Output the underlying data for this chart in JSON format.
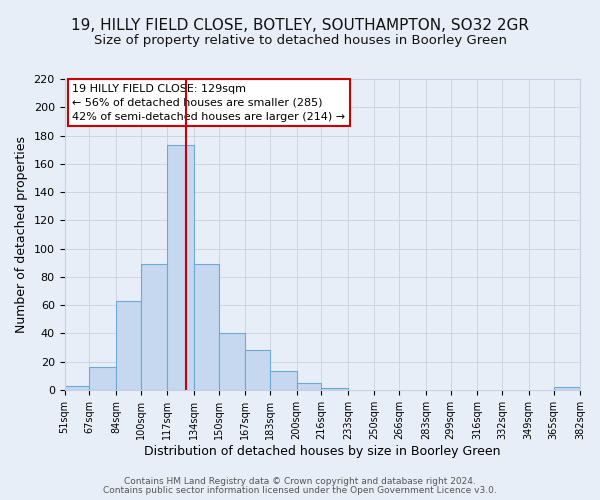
{
  "title": "19, HILLY FIELD CLOSE, BOTLEY, SOUTHAMPTON, SO32 2GR",
  "subtitle": "Size of property relative to detached houses in Boorley Green",
  "xlabel": "Distribution of detached houses by size in Boorley Green",
  "ylabel": "Number of detached properties",
  "bin_edges": [
    51,
    67,
    84,
    100,
    117,
    134,
    150,
    167,
    183,
    200,
    216,
    233,
    250,
    266,
    283,
    299,
    316,
    332,
    349,
    365,
    382
  ],
  "bin_heights": [
    3,
    16,
    63,
    89,
    173,
    89,
    40,
    28,
    13,
    5,
    1,
    0,
    0,
    0,
    0,
    0,
    0,
    0,
    0,
    2
  ],
  "bar_color": "#c5d8f0",
  "bar_edgecolor": "#6aaad4",
  "bar_linewidth": 0.8,
  "grid_color": "#c8cfe0",
  "property_line_x": 129,
  "property_line_color": "#cc0000",
  "ylim": [
    0,
    220
  ],
  "yticks": [
    0,
    20,
    40,
    60,
    80,
    100,
    120,
    140,
    160,
    180,
    200,
    220
  ],
  "title_fontsize": 11,
  "subtitle_fontsize": 9.5,
  "xlabel_fontsize": 9,
  "ylabel_fontsize": 9,
  "tick_labels": [
    "51sqm",
    "67sqm",
    "84sqm",
    "100sqm",
    "117sqm",
    "134sqm",
    "150sqm",
    "167sqm",
    "183sqm",
    "200sqm",
    "216sqm",
    "233sqm",
    "250sqm",
    "266sqm",
    "283sqm",
    "299sqm",
    "316sqm",
    "332sqm",
    "349sqm",
    "365sqm",
    "382sqm"
  ],
  "annotation_title": "19 HILLY FIELD CLOSE: 129sqm",
  "annotation_line1": "← 56% of detached houses are smaller (285)",
  "annotation_line2": "42% of semi-detached houses are larger (214) →",
  "annotation_box_color": "#ffffff",
  "annotation_box_edgecolor": "#cc0000",
  "footer1": "Contains HM Land Registry data © Crown copyright and database right 2024.",
  "footer2": "Contains public sector information licensed under the Open Government Licence v3.0.",
  "background_color": "#e8eef8"
}
